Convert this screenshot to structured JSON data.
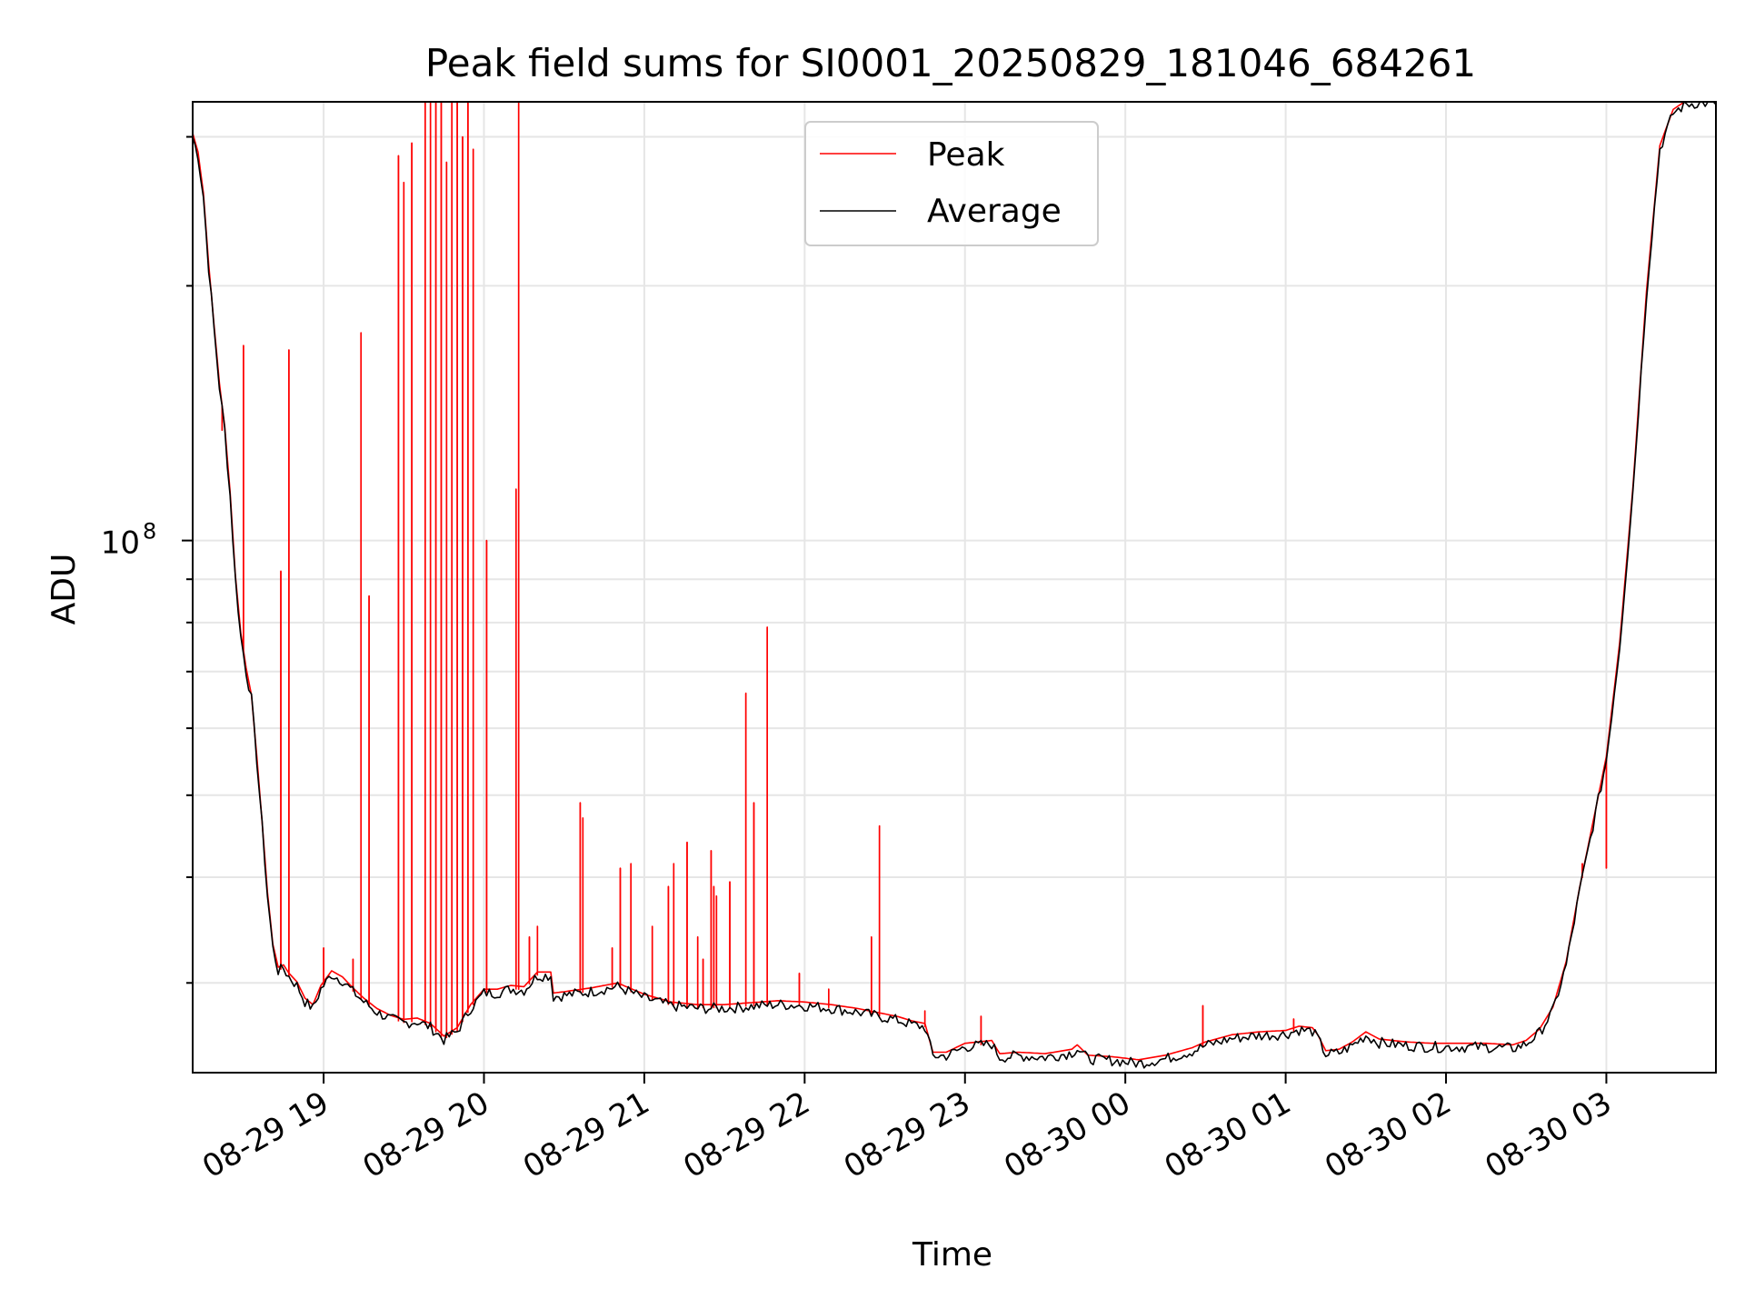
{
  "chart_data": {
    "type": "line",
    "title": "Peak field sums for SI0001_20250829_181046_684261",
    "xlabel": "Time",
    "ylabel": "ADU",
    "yscale": "log",
    "xlim": [
      "2025-08-29T18:11",
      "2025-08-30T03:41"
    ],
    "ylim": [
      23500000,
      330000000
    ],
    "grid": true,
    "legend": {
      "position": "upper-center",
      "entries": [
        "Peak",
        "Average"
      ]
    },
    "colors": {
      "Peak": "#ff0000",
      "Average": "#000000"
    },
    "x_ticks": [
      {
        "label": "08-29 19",
        "t": "2025-08-29T19:00"
      },
      {
        "label": "08-29 20",
        "t": "2025-08-29T20:00"
      },
      {
        "label": "08-29 21",
        "t": "2025-08-29T21:00"
      },
      {
        "label": "08-29 22",
        "t": "2025-08-29T22:00"
      },
      {
        "label": "08-29 23",
        "t": "2025-08-29T23:00"
      },
      {
        "label": "08-30 00",
        "t": "2025-08-30T00:00"
      },
      {
        "label": "08-30 01",
        "t": "2025-08-30T01:00"
      },
      {
        "label": "08-30 02",
        "t": "2025-08-30T02:00"
      },
      {
        "label": "08-30 03",
        "t": "2025-08-30T03:00"
      }
    ],
    "y_ticks": [
      {
        "base": "10",
        "exp": "8",
        "value": 100000000
      }
    ],
    "series": [
      {
        "name": "Average",
        "points": [
          [
            "2025-08-29T18:11",
            300000000
          ],
          [
            "2025-08-29T18:13",
            285000000
          ],
          [
            "2025-08-29T18:15",
            255000000
          ],
          [
            "2025-08-29T18:17",
            210000000
          ],
          [
            "2025-08-29T18:19",
            178000000
          ],
          [
            "2025-08-29T18:21",
            152000000
          ],
          [
            "2025-08-29T18:23",
            135000000
          ],
          [
            "2025-08-29T18:25",
            113000000
          ],
          [
            "2025-08-29T18:27",
            90000000
          ],
          [
            "2025-08-29T18:29",
            77000000
          ],
          [
            "2025-08-29T18:31",
            70000000
          ],
          [
            "2025-08-29T18:33",
            65000000
          ],
          [
            "2025-08-29T18:35",
            55000000
          ],
          [
            "2025-08-29T18:37",
            46000000
          ],
          [
            "2025-08-29T18:39",
            38000000
          ],
          [
            "2025-08-29T18:41",
            33000000
          ],
          [
            "2025-08-29T18:43",
            31000000
          ],
          [
            "2025-08-29T18:45",
            31200000
          ],
          [
            "2025-08-29T18:47",
            30500000
          ],
          [
            "2025-08-29T18:50",
            29800000
          ],
          [
            "2025-08-29T18:53",
            28500000
          ],
          [
            "2025-08-29T18:56",
            28000000
          ],
          [
            "2025-08-29T18:59",
            29500000
          ],
          [
            "2025-08-29T19:03",
            30700000
          ],
          [
            "2025-08-29T19:07",
            30200000
          ],
          [
            "2025-08-29T19:11",
            29300000
          ],
          [
            "2025-08-29T19:15",
            28500000
          ],
          [
            "2025-08-29T19:20",
            27700000
          ],
          [
            "2025-08-29T19:25",
            27200000
          ],
          [
            "2025-08-29T19:30",
            26900000
          ],
          [
            "2025-08-29T19:35",
            27000000
          ],
          [
            "2025-08-29T19:40",
            26600000
          ],
          [
            "2025-08-29T19:45",
            25700000
          ],
          [
            "2025-08-29T19:50",
            26300000
          ],
          [
            "2025-08-29T19:55",
            28000000
          ],
          [
            "2025-08-29T20:00",
            29200000
          ],
          [
            "2025-08-29T20:05",
            29200000
          ],
          [
            "2025-08-29T20:10",
            29500000
          ],
          [
            "2025-08-29T20:15",
            29400000
          ],
          [
            "2025-08-29T20:20",
            30600000
          ],
          [
            "2025-08-29T20:25",
            30600000
          ],
          [
            "2025-08-29T20:26",
            28900000
          ],
          [
            "2025-08-29T20:30",
            29000000
          ],
          [
            "2025-08-29T20:40",
            29300000
          ],
          [
            "2025-08-29T20:50",
            29700000
          ],
          [
            "2025-08-29T21:00",
            28800000
          ],
          [
            "2025-08-29T21:10",
            28200000
          ],
          [
            "2025-08-29T21:20",
            28000000
          ],
          [
            "2025-08-29T21:30",
            28000000
          ],
          [
            "2025-08-29T21:40",
            28150000
          ],
          [
            "2025-08-29T21:50",
            28300000
          ],
          [
            "2025-08-29T22:00",
            28200000
          ],
          [
            "2025-08-29T22:10",
            28000000
          ],
          [
            "2025-08-29T22:20",
            27700000
          ],
          [
            "2025-08-29T22:30",
            27300000
          ],
          [
            "2025-08-29T22:35",
            27100000
          ],
          [
            "2025-08-29T22:40",
            26800000
          ],
          [
            "2025-08-29T22:45",
            26600000
          ],
          [
            "2025-08-29T22:48",
            24600000
          ],
          [
            "2025-08-29T22:53",
            24600000
          ],
          [
            "2025-08-29T23:00",
            25200000
          ],
          [
            "2025-08-29T23:10",
            25400000
          ],
          [
            "2025-08-29T23:13",
            24500000
          ],
          [
            "2025-08-29T23:20",
            24600000
          ],
          [
            "2025-08-29T23:30",
            24500000
          ],
          [
            "2025-08-29T23:40",
            24800000
          ],
          [
            "2025-08-29T23:42",
            25100000
          ],
          [
            "2025-08-29T23:46",
            24400000
          ],
          [
            "2025-08-29T23:55",
            24300000
          ],
          [
            "2025-08-30T00:05",
            24100000
          ],
          [
            "2025-08-30T00:15",
            24400000
          ],
          [
            "2025-08-30T00:25",
            24900000
          ],
          [
            "2025-08-30T00:30",
            25300000
          ],
          [
            "2025-08-30T00:40",
            25800000
          ],
          [
            "2025-08-30T00:50",
            26000000
          ],
          [
            "2025-08-30T01:00",
            26100000
          ],
          [
            "2025-08-30T01:05",
            26400000
          ],
          [
            "2025-08-30T01:10",
            26300000
          ],
          [
            "2025-08-30T01:12",
            25800000
          ],
          [
            "2025-08-30T01:15",
            24700000
          ],
          [
            "2025-08-30T01:20",
            24800000
          ],
          [
            "2025-08-30T01:25",
            25300000
          ],
          [
            "2025-08-30T01:30",
            26000000
          ],
          [
            "2025-08-30T01:35",
            25500000
          ],
          [
            "2025-08-30T01:45",
            25300000
          ],
          [
            "2025-08-30T01:55",
            25200000
          ],
          [
            "2025-08-30T02:05",
            25200000
          ],
          [
            "2025-08-30T02:15",
            25200000
          ],
          [
            "2025-08-30T02:25",
            25100000
          ],
          [
            "2025-08-30T02:30",
            25400000
          ],
          [
            "2025-08-30T02:35",
            26200000
          ],
          [
            "2025-08-30T02:40",
            27800000
          ],
          [
            "2025-08-30T02:45",
            31500000
          ],
          [
            "2025-08-30T02:50",
            38500000
          ],
          [
            "2025-08-30T02:55",
            46000000
          ],
          [
            "2025-08-30T03:00",
            55000000
          ],
          [
            "2025-08-30T03:05",
            75000000
          ],
          [
            "2025-08-30T03:10",
            115000000
          ],
          [
            "2025-08-30T03:15",
            195000000
          ],
          [
            "2025-08-30T03:20",
            290000000
          ],
          [
            "2025-08-30T03:25",
            320000000
          ],
          [
            "2025-08-30T03:30",
            328000000
          ],
          [
            "2025-08-30T03:35",
            329000000
          ]
        ]
      },
      {
        "name": "Peak",
        "spikes": [
          [
            "2025-08-29T18:22",
            135000000
          ],
          [
            "2025-08-29T18:30",
            170000000
          ],
          [
            "2025-08-29T18:44",
            92000000
          ],
          [
            "2025-08-29T18:47",
            168000000
          ],
          [
            "2025-08-29T19:00",
            33000000
          ],
          [
            "2025-08-29T19:11",
            32000000
          ],
          [
            "2025-08-29T19:14",
            176000000
          ],
          [
            "2025-08-29T19:17",
            86000000
          ],
          [
            "2025-08-29T19:28",
            285000000
          ],
          [
            "2025-08-29T19:30",
            265000000
          ],
          [
            "2025-08-29T19:33",
            295000000
          ],
          [
            "2025-08-29T19:38",
            330000000
          ],
          [
            "2025-08-29T19:40",
            330000000
          ],
          [
            "2025-08-29T19:42",
            330000000
          ],
          [
            "2025-08-29T19:44",
            330000000
          ],
          [
            "2025-08-29T19:46",
            280000000
          ],
          [
            "2025-08-29T19:48",
            330000000
          ],
          [
            "2025-08-29T19:50",
            330000000
          ],
          [
            "2025-08-29T19:52",
            300000000
          ],
          [
            "2025-08-29T19:54",
            330000000
          ],
          [
            "2025-08-29T19:56",
            290000000
          ],
          [
            "2025-08-29T20:01",
            100000000
          ],
          [
            "2025-08-29T20:12",
            115000000
          ],
          [
            "2025-08-29T20:13",
            330000000
          ],
          [
            "2025-08-29T20:17",
            34000000
          ],
          [
            "2025-08-29T20:20",
            35000000
          ],
          [
            "2025-08-29T20:36",
            49000000
          ],
          [
            "2025-08-29T20:37",
            47000000
          ],
          [
            "2025-08-29T20:48",
            33000000
          ],
          [
            "2025-08-29T20:51",
            41000000
          ],
          [
            "2025-08-29T20:55",
            41500000
          ],
          [
            "2025-08-29T21:03",
            35000000
          ],
          [
            "2025-08-29T21:09",
            39000000
          ],
          [
            "2025-08-29T21:11",
            41500000
          ],
          [
            "2025-08-29T21:16",
            44000000
          ],
          [
            "2025-08-29T21:20",
            34000000
          ],
          [
            "2025-08-29T21:22",
            32000000
          ],
          [
            "2025-08-29T21:25",
            43000000
          ],
          [
            "2025-08-29T21:26",
            39000000
          ],
          [
            "2025-08-29T21:27",
            38000000
          ],
          [
            "2025-08-29T21:32",
            39500000
          ],
          [
            "2025-08-29T21:38",
            66000000
          ],
          [
            "2025-08-29T21:41",
            49000000
          ],
          [
            "2025-08-29T21:46",
            79000000
          ],
          [
            "2025-08-29T21:58",
            30800000
          ],
          [
            "2025-08-29T22:09",
            29500000
          ],
          [
            "2025-08-29T22:25",
            34000000
          ],
          [
            "2025-08-29T22:28",
            46000000
          ],
          [
            "2025-08-29T22:45",
            27800000
          ],
          [
            "2025-08-29T23:06",
            27400000
          ],
          [
            "2025-08-30T00:29",
            28200000
          ],
          [
            "2025-08-30T01:03",
            27200000
          ],
          [
            "2025-08-30T02:51",
            41500000
          ],
          [
            "2025-08-30T03:00",
            41000000
          ]
        ]
      }
    ]
  }
}
